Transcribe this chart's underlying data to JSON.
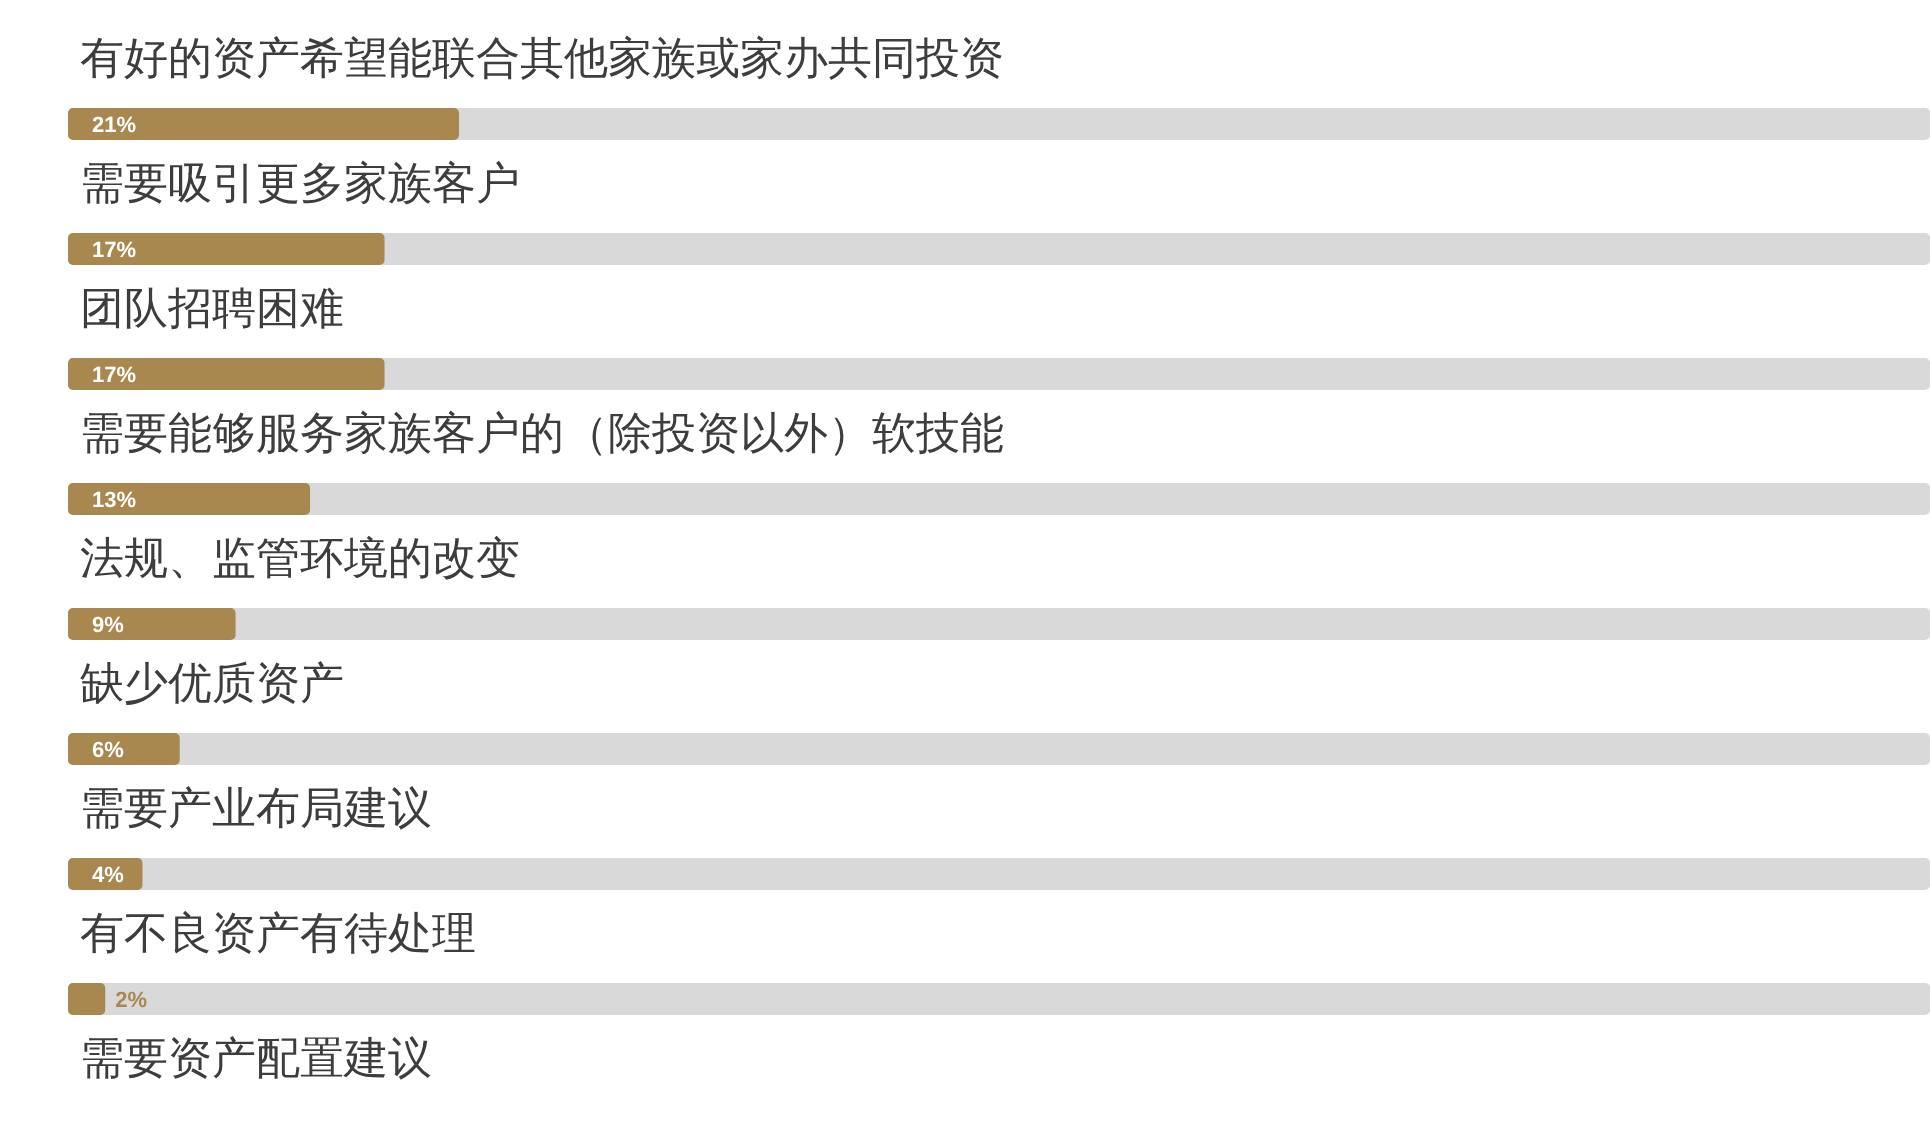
{
  "chart_data": {
    "type": "bar",
    "orientation": "horizontal",
    "categories": [
      "有好的资产希望能联合其他家族或家办共同投资",
      "需要吸引更多家族客户",
      "团队招聘困难",
      "需要能够服务家族客户的（除投资以外）软技能",
      "法规、监管环境的改变",
      "缺少优质资产",
      "需要产业布局建议",
      "有不良资产有待处理",
      "需要资产配置建议"
    ],
    "values": [
      21,
      17,
      17,
      13,
      9,
      6,
      4,
      2,
      null
    ],
    "value_labels": [
      "21%",
      "17%",
      "17%",
      "13%",
      "9%",
      "6%",
      "4%",
      "2%",
      null
    ],
    "color": "#a9884f",
    "xlim": [
      0,
      100
    ],
    "tick_labels": "y"
  }
}
